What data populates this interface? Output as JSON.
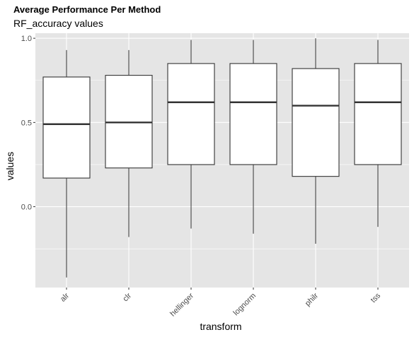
{
  "chart_data": {
    "type": "boxplot",
    "title": "Average Performance Per Method",
    "subtitle": "RF_accuracy values",
    "xlabel": "transform",
    "ylabel": "values",
    "ylim": [
      -0.48,
      1.03
    ],
    "yticks": [
      0.0,
      0.5,
      1.0
    ],
    "ytick_labels": [
      "0.0",
      "0.5",
      "1.0"
    ],
    "grid": true,
    "categories": [
      "alr",
      "clr",
      "hellinger",
      "lognorm",
      "philr",
      "tss"
    ],
    "boxes": [
      {
        "category": "alr",
        "whisker_low": -0.42,
        "q1": 0.17,
        "median": 0.49,
        "q3": 0.77,
        "whisker_high": 0.93
      },
      {
        "category": "clr",
        "whisker_low": -0.18,
        "q1": 0.23,
        "median": 0.5,
        "q3": 0.78,
        "whisker_high": 0.93
      },
      {
        "category": "hellinger",
        "whisker_low": -0.13,
        "q1": 0.25,
        "median": 0.62,
        "q3": 0.85,
        "whisker_high": 0.99
      },
      {
        "category": "lognorm",
        "whisker_low": -0.16,
        "q1": 0.25,
        "median": 0.62,
        "q3": 0.85,
        "whisker_high": 0.99
      },
      {
        "category": "philr",
        "whisker_low": -0.22,
        "q1": 0.18,
        "median": 0.6,
        "q3": 0.82,
        "whisker_high": 1.0
      },
      {
        "category": "tss",
        "whisker_low": -0.12,
        "q1": 0.25,
        "median": 0.62,
        "q3": 0.85,
        "whisker_high": 0.99
      }
    ],
    "colors": {
      "panel_background": "#e5e5e5",
      "grid": "#ffffff",
      "box_fill": "#ffffff",
      "box_line": "#333333",
      "tick_text": "#4d4d4d"
    }
  }
}
